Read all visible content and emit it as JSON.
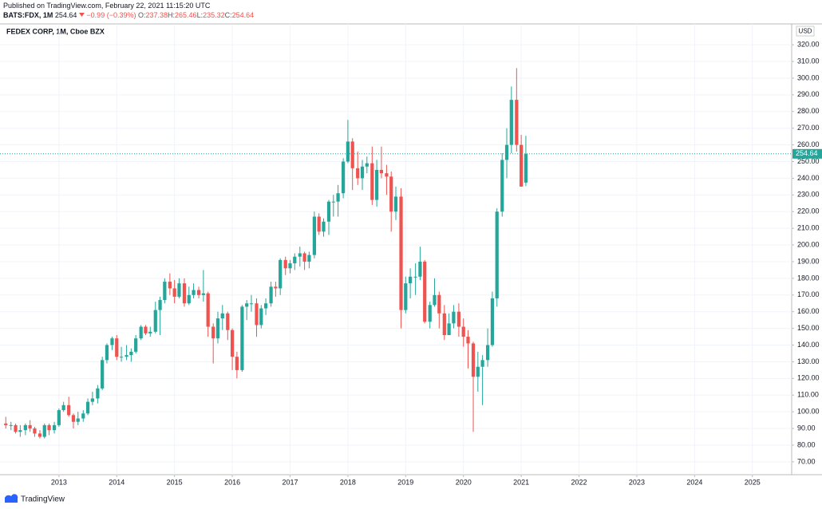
{
  "header": {
    "published": "Published on TradingView.com, February 22, 2021 11:15:20 UTC",
    "symbol": "BATS:FDX, 1M",
    "last": "254.64",
    "change": "−0.99 (−0.39%)",
    "ohlc": [
      {
        "label": "O:",
        "value": "237.38"
      },
      {
        "label": "H:",
        "value": "265.46"
      },
      {
        "label": "L:",
        "value": "235.32"
      },
      {
        "label": "C:",
        "value": "254.64"
      }
    ]
  },
  "footer": {
    "brand": "TradingView"
  },
  "chart_data": {
    "type": "candlestick",
    "title": "FEDEX CORP, 1M, Cboe BZX",
    "currency": "USD",
    "up_color": "#26a69a",
    "down_color": "#ef5350",
    "grid": true,
    "last_price_line": true,
    "x": [
      2012.08,
      2012.17,
      2012.25,
      2012.33,
      2012.42,
      2012.5,
      2012.58,
      2012.67,
      2012.75,
      2012.83,
      2012.92,
      2013,
      2013.08,
      2013.17,
      2013.25,
      2013.33,
      2013.42,
      2013.5,
      2013.58,
      2013.67,
      2013.75,
      2013.83,
      2013.92,
      2014,
      2014.08,
      2014.17,
      2014.25,
      2014.33,
      2014.42,
      2014.5,
      2014.58,
      2014.67,
      2014.75,
      2014.83,
      2014.92,
      2015,
      2015.08,
      2015.17,
      2015.25,
      2015.33,
      2015.42,
      2015.5,
      2015.58,
      2015.67,
      2015.75,
      2015.83,
      2015.92,
      2016,
      2016.08,
      2016.17,
      2016.25,
      2016.33,
      2016.42,
      2016.5,
      2016.58,
      2016.67,
      2016.75,
      2016.83,
      2016.92,
      2017,
      2017.08,
      2017.17,
      2017.25,
      2017.33,
      2017.42,
      2017.5,
      2017.58,
      2017.67,
      2017.75,
      2017.83,
      2017.92,
      2018,
      2018.08,
      2018.17,
      2018.25,
      2018.33,
      2018.42,
      2018.5,
      2018.58,
      2018.67,
      2018.75,
      2018.83,
      2018.92,
      2019,
      2019.08,
      2019.17,
      2019.25,
      2019.33,
      2019.42,
      2019.5,
      2019.58,
      2019.67,
      2019.75,
      2019.83,
      2019.92,
      2020,
      2020.08,
      2020.17,
      2020.25,
      2020.33,
      2020.42,
      2020.5,
      2020.58,
      2020.67,
      2020.75,
      2020.83,
      2020.92,
      2021,
      2021.08
    ],
    "open": [
      93,
      92,
      92,
      88,
      89,
      92,
      90,
      87,
      85,
      92,
      89,
      92,
      101,
      104,
      98,
      94,
      96,
      99,
      106,
      108,
      114,
      131,
      140,
      144,
      133,
      133,
      134,
      136,
      144,
      151,
      147,
      148,
      161,
      167,
      178,
      174,
      169,
      177,
      165,
      170,
      173,
      170,
      171,
      151,
      144,
      156,
      159,
      149,
      133,
      125,
      163,
      165,
      165,
      152,
      162,
      165,
      175,
      174,
      191,
      186,
      189,
      193,
      195,
      190,
      194,
      217,
      208,
      214,
      226,
      226,
      231,
      250,
      262,
      246,
      240,
      247,
      249,
      227,
      245,
      243,
      241,
      220,
      229,
      161,
      177,
      181,
      181,
      190,
      154,
      164,
      170,
      159,
      146,
      153,
      160,
      151,
      145,
      141,
      121,
      127,
      131,
      140,
      168,
      220,
      251,
      260,
      287,
      260,
      237.38
    ],
    "high": [
      97,
      94,
      93,
      92,
      93,
      95,
      91,
      89,
      93,
      93,
      94,
      102,
      106,
      109,
      99,
      100,
      101,
      108,
      112,
      116,
      133,
      141,
      145,
      146,
      139,
      140,
      138,
      146,
      152,
      152,
      151,
      166,
      169,
      180,
      183,
      179,
      180,
      180,
      175,
      177,
      175,
      185,
      172,
      153,
      160,
      164,
      160,
      150,
      136,
      164,
      167,
      170,
      168,
      164,
      168,
      178,
      178,
      192,
      193,
      191,
      195,
      199,
      196,
      196,
      220,
      219,
      216,
      227,
      230,
      236,
      252,
      275,
      264,
      256,
      251,
      253,
      259,
      251,
      259,
      248,
      244,
      235,
      234,
      181,
      186,
      189,
      199,
      191,
      166,
      180,
      172,
      164,
      159,
      164,
      165,
      156,
      149,
      142,
      136,
      134,
      150,
      172,
      222,
      255,
      270,
      295,
      306,
      266,
      265.46
    ],
    "low": [
      90,
      89,
      87,
      85,
      86,
      88,
      85,
      84,
      84,
      86,
      87,
      91,
      100,
      97,
      90,
      92,
      94,
      98,
      104,
      105,
      113,
      129,
      137,
      131,
      130,
      131,
      130,
      135,
      143,
      146,
      145,
      147,
      146,
      165,
      170,
      165,
      168,
      163,
      164,
      168,
      168,
      166,
      145,
      129,
      141,
      149,
      143,
      125,
      120,
      124,
      155,
      160,
      145,
      150,
      158,
      163,
      169,
      170,
      182,
      183,
      185,
      187,
      185,
      186,
      192,
      206,
      205,
      206,
      217,
      217,
      228,
      249,
      233,
      236,
      233,
      243,
      224,
      223,
      240,
      230,
      208,
      215,
      150,
      159,
      168,
      170,
      179,
      153,
      150,
      163,
      150,
      143,
      146,
      150,
      145,
      139,
      126,
      88,
      112,
      104,
      127,
      139,
      163,
      217,
      240,
      255,
      256,
      235,
      235.32
    ],
    "close": [
      92,
      92,
      88,
      89,
      92,
      90,
      87,
      85,
      92,
      89,
      92,
      101,
      104,
      98,
      94,
      96,
      99,
      106,
      108,
      114,
      131,
      140,
      144,
      133,
      133,
      134,
      136,
      144,
      151,
      147,
      148,
      161,
      167,
      178,
      174,
      169,
      177,
      165,
      170,
      173,
      170,
      171,
      151,
      144,
      156,
      159,
      149,
      133,
      125,
      163,
      165,
      165,
      152,
      162,
      165,
      175,
      174,
      191,
      186,
      189,
      193,
      195,
      190,
      194,
      217,
      208,
      214,
      226,
      226,
      231,
      250,
      262,
      246,
      240,
      247,
      249,
      227,
      245,
      243,
      241,
      220,
      229,
      161,
      177,
      181,
      181,
      190,
      154,
      164,
      170,
      159,
      146,
      153,
      160,
      151,
      145,
      141,
      121,
      127,
      131,
      140,
      168,
      220,
      251,
      260,
      287,
      260,
      235,
      254.64
    ],
    "xlim": [
      2011.98,
      2025.68
    ],
    "xticks": [
      2013,
      2014,
      2015,
      2016,
      2017,
      2018,
      2019,
      2020,
      2021,
      2022,
      2023,
      2024,
      2025
    ],
    "ylim": [
      62.3,
      332.5
    ],
    "yticks": [
      {
        "value": 70,
        "label": "70.00"
      },
      {
        "value": 80,
        "label": "80.00"
      },
      {
        "value": 90,
        "label": "90.00"
      },
      {
        "value": 100,
        "label": "100.00"
      },
      {
        "value": 110,
        "label": "110.00"
      },
      {
        "value": 120,
        "label": "120.00"
      },
      {
        "value": 130,
        "label": "130.00"
      },
      {
        "value": 140,
        "label": "140.00"
      },
      {
        "value": 150,
        "label": "150.00"
      },
      {
        "value": 160,
        "label": "160.00"
      },
      {
        "value": 170,
        "label": "170.00"
      },
      {
        "value": 180,
        "label": "180.00"
      },
      {
        "value": 190,
        "label": "190.00"
      },
      {
        "value": 200,
        "label": "200.00"
      },
      {
        "value": 210,
        "label": "210.00"
      },
      {
        "value": 220,
        "label": "220.00"
      },
      {
        "value": 230,
        "label": "230.00"
      },
      {
        "value": 240,
        "label": "240.00"
      },
      {
        "value": 250,
        "label": "250.00"
      },
      {
        "value": 260,
        "label": "260.00"
      },
      {
        "value": 270,
        "label": "270.00"
      },
      {
        "value": 280,
        "label": "280.00"
      },
      {
        "value": 290,
        "label": "290.00"
      },
      {
        "value": 300,
        "label": "300.00"
      },
      {
        "value": 310,
        "label": "310.00"
      },
      {
        "value": 320,
        "label": "320.00"
      }
    ]
  }
}
